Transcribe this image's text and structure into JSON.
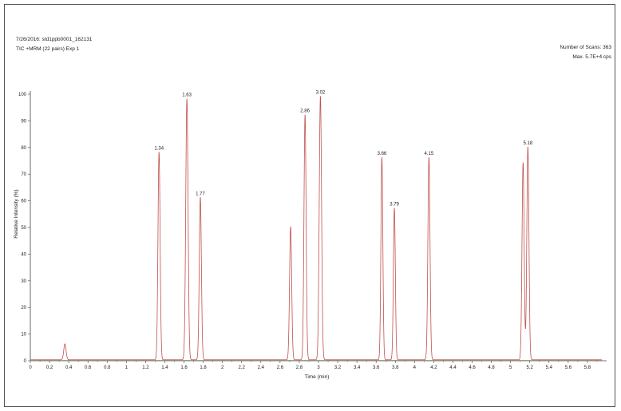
{
  "header": {
    "sample_line": "7/26/2016: std1ppb0001_162131",
    "scan_line": "TIC +MRM (22 pairs) Exp 1",
    "scans_label": "Number of Scans: 363",
    "max_label": "Max. 5.7E+4 cps"
  },
  "colors": {
    "trace": "#c0504d",
    "axis": "#444444",
    "baseline": "#8fa66f"
  },
  "chart_data": {
    "type": "line",
    "xlabel": "Time (min)",
    "ylabel": "Relative Intensity (%)",
    "xlim": [
      0,
      6.0
    ],
    "ylim": [
      0,
      100
    ],
    "x_ticks": [
      "0",
      "0.2",
      "0.4",
      "0.6",
      "0.8",
      "1",
      "1.2",
      "1.4",
      "1.6",
      "1.8",
      "2",
      "2.2",
      "2.4",
      "2.6",
      "2.8",
      "3",
      "3.2",
      "3.4",
      "3.6",
      "3.8",
      "4",
      "4.2",
      "4.4",
      "4.6",
      "4.8",
      "5",
      "5.2",
      "5.4",
      "5.6",
      "5.8"
    ],
    "y_ticks": [
      "0",
      "10",
      "20",
      "30",
      "40",
      "50",
      "60",
      "70",
      "80",
      "90",
      "100"
    ],
    "grid": false,
    "series": [
      {
        "peaks": [
          {
            "rt": 0.36,
            "height": 6,
            "width": 0.012
          },
          {
            "rt": 1.34,
            "height": 78,
            "width": 0.011
          },
          {
            "rt": 1.63,
            "height": 98,
            "width": 0.012
          },
          {
            "rt": 1.77,
            "height": 61,
            "width": 0.011
          },
          {
            "rt": 2.71,
            "height": 50,
            "width": 0.011
          },
          {
            "rt": 2.86,
            "height": 92,
            "width": 0.011
          },
          {
            "rt": 3.02,
            "height": 99,
            "width": 0.012
          },
          {
            "rt": 3.66,
            "height": 76,
            "width": 0.01
          },
          {
            "rt": 3.79,
            "height": 57,
            "width": 0.01
          },
          {
            "rt": 4.15,
            "height": 76,
            "width": 0.011
          },
          {
            "rt": 5.13,
            "height": 74,
            "width": 0.011
          },
          {
            "rt": 5.18,
            "height": 80,
            "width": 0.011
          }
        ]
      }
    ],
    "annotations": [
      {
        "x": 1.34,
        "y": 78,
        "text": "1.34"
      },
      {
        "x": 1.63,
        "y": 98,
        "text": "1.63"
      },
      {
        "x": 1.77,
        "y": 61,
        "text": "1.77"
      },
      {
        "x": 2.86,
        "y": 92,
        "text": "2.86"
      },
      {
        "x": 3.02,
        "y": 99,
        "text": "3.02"
      },
      {
        "x": 3.66,
        "y": 76,
        "text": "3.66"
      },
      {
        "x": 3.79,
        "y": 57,
        "text": "3.79"
      },
      {
        "x": 4.15,
        "y": 76,
        "text": "4.15"
      },
      {
        "x": 5.18,
        "y": 80,
        "text": "5.18"
      }
    ]
  }
}
